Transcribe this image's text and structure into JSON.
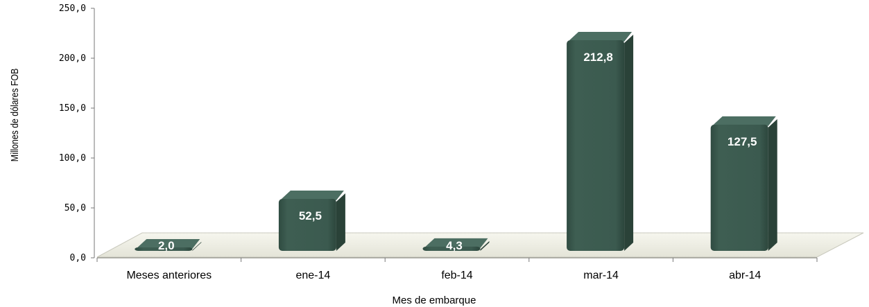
{
  "chart_data": {
    "type": "bar",
    "title": "",
    "xlabel": "Mes de embarque",
    "ylabel": "Millones de dólares FOB",
    "categories": [
      "Meses anteriores",
      "ene-14",
      "feb-14",
      "mar-14",
      "abr-14"
    ],
    "values": [
      2.0,
      52.5,
      4.3,
      212.8,
      127.5
    ],
    "value_labels": [
      "2,0",
      "52,5",
      "4,3",
      "212,8",
      "127,5"
    ],
    "ylim": [
      0,
      250
    ],
    "yticks": [
      0,
      50,
      100,
      150,
      200,
      250
    ],
    "ytick_labels": [
      "0,0",
      "50,0",
      "100,0",
      "150,0",
      "200,0",
      "250,0"
    ],
    "grid": false,
    "legend": "none",
    "bar_color": "#3b5a4f",
    "floor_color": "#eeeee4"
  }
}
